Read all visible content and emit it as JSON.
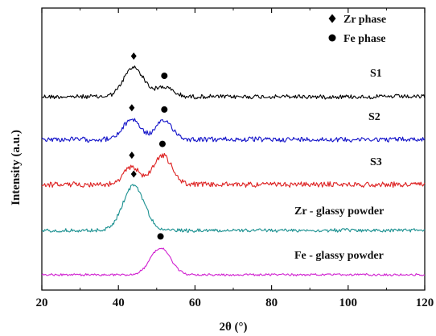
{
  "chart_data": {
    "type": "line",
    "title": "",
    "xlabel": "2θ (°)",
    "ylabel": "Intensity (a.u.)",
    "xlim": [
      20,
      120
    ],
    "x_ticks": [
      "20",
      "40",
      "60",
      "80",
      "100",
      "120"
    ],
    "y_ticks_shown": false,
    "grid": false,
    "legend_placement": "top-right",
    "legend": [
      {
        "label": "Zr phase",
        "marker": "diamond",
        "color": "#000000"
      },
      {
        "label": "Fe phase",
        "marker": "circle",
        "color": "#000000"
      }
    ],
    "series": [
      {
        "name": "S1",
        "color": "#000000",
        "peaks": [
          {
            "x": 44.0,
            "height": 0.52,
            "width": 2.6,
            "phase": "Zr phase"
          },
          {
            "x": 52.0,
            "height": 0.17,
            "width": 2.2,
            "phase": "Fe phase"
          }
        ]
      },
      {
        "name": "S2",
        "color": "#1010c8",
        "peaks": [
          {
            "x": 43.5,
            "height": 0.36,
            "width": 2.2,
            "phase": "Zr phase"
          },
          {
            "x": 52.0,
            "height": 0.33,
            "width": 2.2,
            "phase": "Fe phase"
          }
        ]
      },
      {
        "name": "S3",
        "color": "#dd2020",
        "peaks": [
          {
            "x": 43.5,
            "height": 0.32,
            "width": 2.0,
            "phase": "Zr phase"
          },
          {
            "x": 51.5,
            "height": 0.52,
            "width": 2.4,
            "phase": "Fe phase"
          }
        ]
      },
      {
        "name": "Zr - glassy powder",
        "color": "#1a9090",
        "peaks": [
          {
            "x": 44.0,
            "height": 0.8,
            "width": 2.8,
            "phase": "Zr phase"
          }
        ]
      },
      {
        "name": "Fe - glassy powder",
        "color": "#d020d0",
        "peaks": [
          {
            "x": 51.0,
            "height": 0.48,
            "width": 2.6,
            "phase": "Fe phase"
          }
        ]
      }
    ]
  }
}
